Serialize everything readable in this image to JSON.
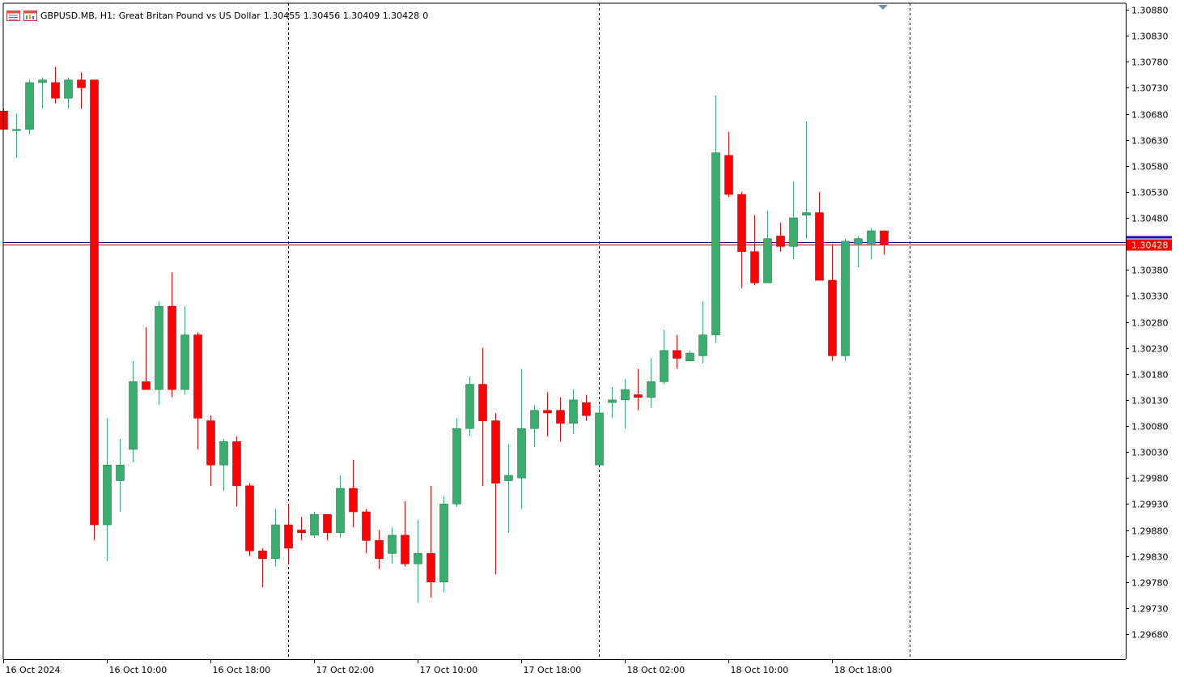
{
  "header": {
    "symbol": "GBPUSD.MB, H1:",
    "description": "Great Britan Pound vs US Dollar",
    "ohlc": "1.30455 1.30456 1.30409 1.30428",
    "extra": "0",
    "icons": [
      "chart-list-icon",
      "chart-window-icon"
    ]
  },
  "colors": {
    "bull": "#3aac6e",
    "bear": "#ff0000",
    "grid_separator": "#000000",
    "price_label_bg": "#ff0000",
    "bid_line": "#c00000",
    "ask_line": "#000080"
  },
  "chart_data": {
    "type": "candlestick",
    "timeframe": "H1",
    "y_ticks": [
      "1.30880",
      "1.30830",
      "1.30780",
      "1.30730",
      "1.30680",
      "1.30630",
      "1.30580",
      "1.30530",
      "1.30480",
      "1.30380",
      "1.30330",
      "1.30280",
      "1.30230",
      "1.30180",
      "1.30130",
      "1.30080",
      "1.30030",
      "1.29980",
      "1.29930",
      "1.29880",
      "1.29830",
      "1.29780",
      "1.29730",
      "1.29680"
    ],
    "ylim": [
      1.2966,
      1.3089
    ],
    "x_labels": [
      "16 Oct 2024",
      "16 Oct 10:00",
      "16 Oct 18:00",
      "17 Oct 02:00",
      "17 Oct 10:00",
      "17 Oct 18:00",
      "18 Oct 02:00",
      "18 Oct 10:00",
      "18 Oct 18:00"
    ],
    "current_price": "1.30428",
    "current_price_value": 1.30428,
    "ask_price_value": 1.30434,
    "separator_bar_indices": [
      22,
      46,
      70
    ],
    "candles": [
      [
        1.30685,
        1.3069,
        1.3065,
        1.3065
      ],
      [
        1.3065,
        1.3068,
        1.30595,
        1.3065
      ],
      [
        1.3065,
        1.30745,
        1.3064,
        1.3074
      ],
      [
        1.3074,
        1.3075,
        1.3069,
        1.30745
      ],
      [
        1.3074,
        1.3077,
        1.307,
        1.3071
      ],
      [
        1.3071,
        1.3075,
        1.3069,
        1.30745
      ],
      [
        1.30745,
        1.3076,
        1.3069,
        1.3073
      ],
      [
        1.30745,
        1.30745,
        1.2986,
        1.2989
      ],
      [
        1.2989,
        1.30095,
        1.2982,
        1.30005
      ],
      [
        1.29975,
        1.30055,
        1.29915,
        1.30005
      ],
      [
        1.30035,
        1.30205,
        1.3001,
        1.30165
      ],
      [
        1.30165,
        1.3027,
        1.3015,
        1.3015
      ],
      [
        1.3015,
        1.3032,
        1.3012,
        1.3031
      ],
      [
        1.3031,
        1.30375,
        1.30135,
        1.3015
      ],
      [
        1.3015,
        1.3031,
        1.3014,
        1.30255
      ],
      [
        1.30255,
        1.3026,
        1.30035,
        1.30095
      ],
      [
        1.3009,
        1.301,
        1.29965,
        1.30005
      ],
      [
        1.30005,
        1.30055,
        1.29955,
        1.3005
      ],
      [
        1.3005,
        1.3006,
        1.29925,
        1.29965
      ],
      [
        1.29965,
        1.2997,
        1.2983,
        1.2984
      ],
      [
        1.2984,
        1.29845,
        1.2977,
        1.29825
      ],
      [
        1.29825,
        1.2992,
        1.2981,
        1.2989
      ],
      [
        1.2989,
        1.2993,
        1.29815,
        1.29845
      ],
      [
        1.2988,
        1.29905,
        1.2986,
        1.29875
      ],
      [
        1.2987,
        1.29915,
        1.29865,
        1.2991
      ],
      [
        1.2991,
        1.2991,
        1.2986,
        1.29875
      ],
      [
        1.29875,
        1.29985,
        1.29865,
        1.2996
      ],
      [
        1.2996,
        1.30015,
        1.29885,
        1.29915
      ],
      [
        1.29915,
        1.2992,
        1.29835,
        1.2986
      ],
      [
        1.2986,
        1.2988,
        1.29805,
        1.29825
      ],
      [
        1.29835,
        1.29885,
        1.29815,
        1.2987
      ],
      [
        1.2987,
        1.29935,
        1.2981,
        1.29815
      ],
      [
        1.29815,
        1.299,
        1.2974,
        1.29835
      ],
      [
        1.29835,
        1.29965,
        1.2975,
        1.2978
      ],
      [
        1.2978,
        1.29945,
        1.2976,
        1.2993
      ],
      [
        1.2993,
        1.30095,
        1.29925,
        1.30075
      ],
      [
        1.30075,
        1.30175,
        1.3006,
        1.3016
      ],
      [
        1.3016,
        1.3023,
        1.29965,
        1.3009
      ],
      [
        1.3009,
        1.30105,
        1.29795,
        1.2997
      ],
      [
        1.29975,
        1.30045,
        1.29875,
        1.29985
      ],
      [
        1.2998,
        1.3019,
        1.2992,
        1.30075
      ],
      [
        1.30075,
        1.3012,
        1.3004,
        1.3011
      ],
      [
        1.3011,
        1.30145,
        1.3006,
        1.30105
      ],
      [
        1.3011,
        1.30135,
        1.3005,
        1.30085
      ],
      [
        1.30085,
        1.3015,
        1.30065,
        1.3013
      ],
      [
        1.30125,
        1.3014,
        1.3009,
        1.301
      ],
      [
        1.30005,
        1.3012,
        1.30005,
        1.30105
      ],
      [
        1.30125,
        1.30155,
        1.30095,
        1.3013
      ],
      [
        1.3013,
        1.3017,
        1.30075,
        1.3015
      ],
      [
        1.3014,
        1.3019,
        1.3011,
        1.30135
      ],
      [
        1.30135,
        1.3021,
        1.30115,
        1.30165
      ],
      [
        1.30165,
        1.30265,
        1.3016,
        1.30225
      ],
      [
        1.30225,
        1.30255,
        1.3019,
        1.3021
      ],
      [
        1.30205,
        1.30225,
        1.30205,
        1.3022
      ],
      [
        1.30215,
        1.3032,
        1.302,
        1.30255
      ],
      [
        1.30255,
        1.30715,
        1.3024,
        1.30605
      ],
      [
        1.306,
        1.30645,
        1.3052,
        1.30525
      ],
      [
        1.30525,
        1.3053,
        1.30345,
        1.30415
      ],
      [
        1.30415,
        1.30485,
        1.3035,
        1.30355
      ],
      [
        1.30355,
        1.30495,
        1.30355,
        1.3044
      ],
      [
        1.30445,
        1.3047,
        1.30415,
        1.30425
      ],
      [
        1.30425,
        1.3055,
        1.304,
        1.3048
      ],
      [
        1.30485,
        1.30665,
        1.3044,
        1.3049
      ],
      [
        1.3049,
        1.3053,
        1.30365,
        1.3036
      ],
      [
        1.3036,
        1.3043,
        1.30205,
        1.30215
      ],
      [
        1.30215,
        1.3044,
        1.30205,
        1.30435
      ],
      [
        1.3043,
        1.30445,
        1.30385,
        1.3044
      ],
      [
        1.3043,
        1.3046,
        1.304,
        1.30455
      ],
      [
        1.30455,
        1.30456,
        1.30409,
        1.30428
      ]
    ]
  }
}
